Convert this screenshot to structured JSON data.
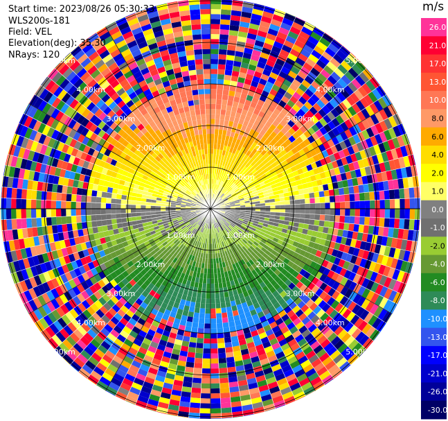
{
  "header": {
    "start_time": "Start time: 2023/08/26 05:30:33",
    "site": "WLS200s-181",
    "field": "Field: VEL",
    "elevation": "Elevation(deg): 35.30",
    "nrays": "NRays: 120"
  },
  "chart_data": {
    "type": "ppi",
    "field": "VEL",
    "units": "m/s",
    "n_rays": 120,
    "range_rings_km": [
      1.0,
      2.0,
      3.0,
      4.0,
      5.0
    ],
    "ring_labels": [
      "1.00km",
      "2.00km",
      "3.00km",
      "4.00km",
      "5.00km"
    ],
    "colorbar": {
      "ticks": [
        "26.0",
        "21.0",
        "17.0",
        "13.0",
        "10.0",
        "8.0",
        "6.0",
        "4.0",
        "2.0",
        "1.0",
        "0.0",
        "-1.0",
        "-2.0",
        "-4.0",
        "-6.0",
        "-8.0",
        "-10.0",
        "-13.0",
        "-17.0",
        "-21.0",
        "-26.0",
        "-30.0"
      ],
      "colors": [
        "#ff3399",
        "#ff0033",
        "#ff3333",
        "#ff5533",
        "#ff7755",
        "#ff9966",
        "#ffaa00",
        "#ffdd00",
        "#ffff00",
        "#ffff66",
        "#808080",
        "#707070",
        "#99cc33",
        "#669933",
        "#228b22",
        "#2e8b57",
        "#1e90ff",
        "#3355ee",
        "#0000ff",
        "#0000cc",
        "#000099",
        "#000066"
      ]
    },
    "velocity_profile": {
      "gates": [
        "0-0.5km",
        "0.5-1km",
        "1-1.5km",
        "1.5-2km",
        "2-2.5km",
        "2.5-3km",
        "3-5.5km"
      ],
      "north_side_mps": [
        0.0,
        2.0,
        4.0,
        6.0,
        8.0,
        10.0,
        null
      ],
      "south_side_mps": [
        0.0,
        -2.0,
        -4.0,
        -6.0,
        -10.0,
        -13.0,
        null
      ],
      "outer_region": "noise"
    }
  },
  "colors": {
    "background": "#ffffff",
    "rings": "#000000"
  }
}
